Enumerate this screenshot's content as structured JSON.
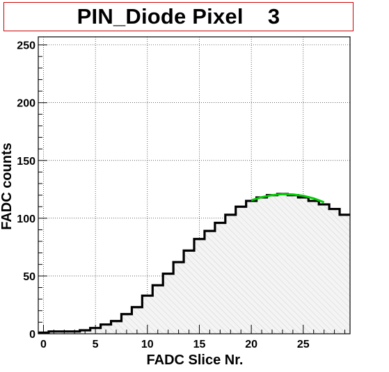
{
  "chart_data": {
    "type": "histogram",
    "title": "PIN_Diode Pixel    3",
    "xlabel": "FADC Slice Nr.",
    "ylabel": "FADC counts",
    "xlim": [
      -0.5,
      29.5
    ],
    "ylim": [
      0,
      257
    ],
    "x_ticks": [
      0,
      5,
      10,
      15,
      20,
      25
    ],
    "y_ticks": [
      0,
      50,
      100,
      150,
      200,
      250
    ],
    "grid": true,
    "bins": [
      -0.5,
      0.5,
      1.5,
      2.5,
      3.5,
      4.5,
      5.5,
      6.5,
      7.5,
      8.5,
      9.5,
      10.5,
      11.5,
      12.5,
      13.5,
      14.5,
      15.5,
      16.5,
      17.5,
      18.5,
      19.5,
      20.5,
      21.5,
      22.5,
      23.5,
      24.5,
      25.5,
      26.5,
      27.5,
      28.5,
      29.5
    ],
    "values": [
      1,
      2,
      2,
      2,
      3,
      5,
      8,
      11,
      17,
      23,
      33,
      42,
      52,
      62,
      72,
      82,
      89,
      96,
      103,
      110,
      115,
      118,
      120,
      121,
      120,
      118,
      115,
      112,
      108,
      103
    ],
    "fit": {
      "name": "",
      "color": "#00cc00",
      "x": [
        20,
        21,
        22,
        23,
        24,
        25,
        26,
        27
      ],
      "y": [
        115.5,
        118.2,
        120.0,
        120.8,
        120.6,
        119.4,
        117.2,
        113.8
      ]
    },
    "fill_color": "#d9d9d9",
    "line_color": "#000000"
  }
}
